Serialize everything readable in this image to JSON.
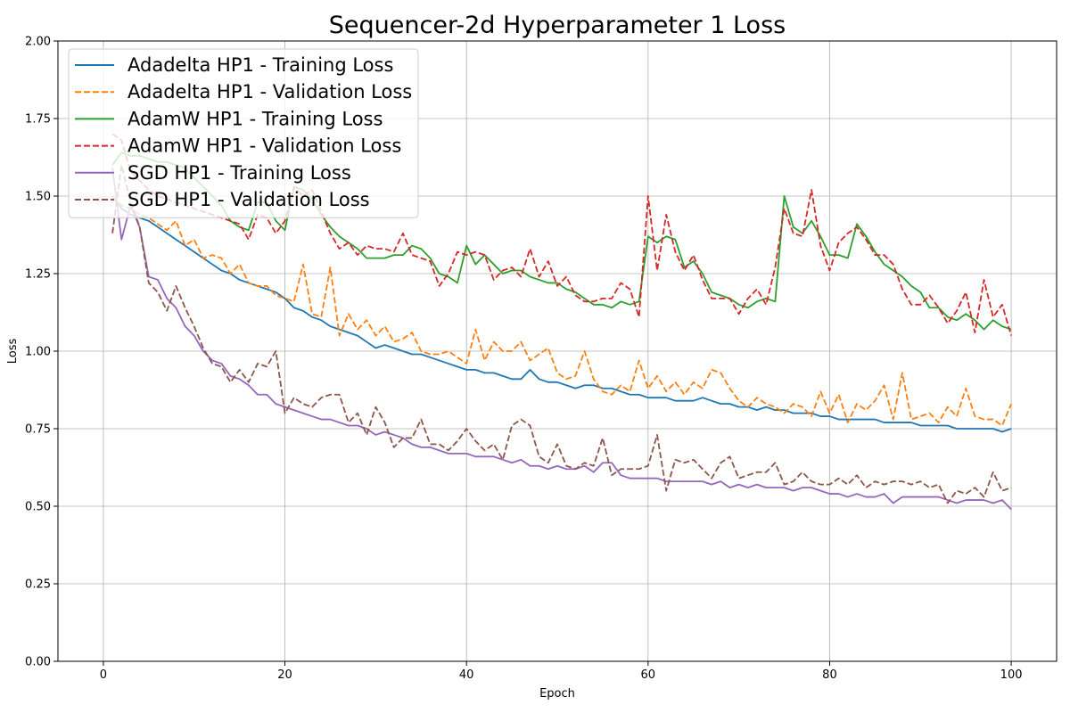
{
  "chart_data": {
    "type": "line",
    "title": "Sequencer-2d Hyperparameter 1 Loss",
    "xlabel": "Epoch",
    "ylabel": "Loss",
    "xlim": [
      -5,
      105
    ],
    "ylim": [
      0,
      2.0
    ],
    "xticks": [
      0,
      20,
      40,
      60,
      80,
      100
    ],
    "yticks": [
      0.0,
      0.25,
      0.5,
      0.75,
      1.0,
      1.25,
      1.5,
      1.75,
      2.0
    ],
    "xtick_labels": [
      "0",
      "20",
      "40",
      "60",
      "80",
      "100"
    ],
    "ytick_labels": [
      "0.00",
      "0.25",
      "0.50",
      "0.75",
      "1.00",
      "1.25",
      "1.50",
      "1.75",
      "2.00"
    ],
    "grid": true,
    "legend_position": "top-left",
    "x_start": 1,
    "series": [
      {
        "name": "Adadelta HP1 - Training Loss",
        "color": "#1f77b4",
        "dash": "solid",
        "values": [
          1.5,
          1.46,
          1.44,
          1.43,
          1.42,
          1.4,
          1.38,
          1.36,
          1.34,
          1.32,
          1.3,
          1.28,
          1.26,
          1.25,
          1.23,
          1.22,
          1.21,
          1.2,
          1.19,
          1.17,
          1.14,
          1.13,
          1.11,
          1.1,
          1.08,
          1.07,
          1.06,
          1.05,
          1.03,
          1.01,
          1.02,
          1.01,
          1.0,
          0.99,
          0.99,
          0.98,
          0.97,
          0.96,
          0.95,
          0.94,
          0.94,
          0.93,
          0.93,
          0.92,
          0.91,
          0.91,
          0.94,
          0.91,
          0.9,
          0.9,
          0.89,
          0.88,
          0.89,
          0.89,
          0.88,
          0.88,
          0.87,
          0.86,
          0.86,
          0.85,
          0.85,
          0.85,
          0.84,
          0.84,
          0.84,
          0.85,
          0.84,
          0.83,
          0.83,
          0.82,
          0.82,
          0.81,
          0.82,
          0.81,
          0.81,
          0.8,
          0.8,
          0.8,
          0.79,
          0.79,
          0.78,
          0.78,
          0.78,
          0.78,
          0.78,
          0.77,
          0.77,
          0.77,
          0.77,
          0.76,
          0.76,
          0.76,
          0.76,
          0.75,
          0.75,
          0.75,
          0.75,
          0.75,
          0.74,
          0.75
        ]
      },
      {
        "name": "Adadelta HP1 - Validation Loss",
        "color": "#ff7f0e",
        "dash": "dashed",
        "values": [
          1.5,
          1.47,
          1.46,
          1.44,
          1.43,
          1.41,
          1.39,
          1.42,
          1.34,
          1.36,
          1.3,
          1.31,
          1.3,
          1.25,
          1.28,
          1.22,
          1.21,
          1.21,
          1.18,
          1.17,
          1.16,
          1.28,
          1.12,
          1.11,
          1.27,
          1.05,
          1.12,
          1.07,
          1.1,
          1.05,
          1.08,
          1.03,
          1.04,
          1.06,
          1.0,
          0.99,
          0.99,
          1.0,
          0.98,
          0.96,
          1.07,
          0.97,
          1.03,
          1.0,
          1.0,
          1.03,
          0.97,
          0.99,
          1.01,
          0.93,
          0.91,
          0.92,
          1.0,
          0.91,
          0.87,
          0.86,
          0.89,
          0.87,
          0.97,
          0.88,
          0.92,
          0.87,
          0.9,
          0.86,
          0.9,
          0.88,
          0.94,
          0.93,
          0.88,
          0.84,
          0.82,
          0.85,
          0.83,
          0.82,
          0.8,
          0.83,
          0.82,
          0.79,
          0.87,
          0.8,
          0.86,
          0.77,
          0.83,
          0.81,
          0.84,
          0.89,
          0.78,
          0.93,
          0.78,
          0.79,
          0.8,
          0.77,
          0.82,
          0.79,
          0.88,
          0.79,
          0.78,
          0.78,
          0.76,
          0.83
        ]
      },
      {
        "name": "AdamW HP1 - Training Loss",
        "color": "#2ca02c",
        "dash": "solid",
        "values": [
          1.6,
          1.64,
          1.63,
          1.63,
          1.62,
          1.61,
          1.61,
          1.6,
          1.59,
          1.56,
          1.53,
          1.5,
          1.47,
          1.42,
          1.4,
          1.39,
          1.48,
          1.48,
          1.42,
          1.39,
          1.53,
          1.52,
          1.49,
          1.44,
          1.4,
          1.37,
          1.35,
          1.33,
          1.3,
          1.3,
          1.3,
          1.31,
          1.31,
          1.34,
          1.33,
          1.3,
          1.25,
          1.24,
          1.22,
          1.34,
          1.28,
          1.31,
          1.28,
          1.25,
          1.26,
          1.26,
          1.24,
          1.23,
          1.22,
          1.22,
          1.2,
          1.19,
          1.17,
          1.15,
          1.15,
          1.14,
          1.16,
          1.15,
          1.16,
          1.37,
          1.35,
          1.37,
          1.36,
          1.27,
          1.29,
          1.25,
          1.19,
          1.18,
          1.17,
          1.15,
          1.14,
          1.16,
          1.17,
          1.16,
          1.5,
          1.4,
          1.38,
          1.42,
          1.37,
          1.31,
          1.31,
          1.3,
          1.41,
          1.37,
          1.32,
          1.28,
          1.26,
          1.24,
          1.21,
          1.19,
          1.14,
          1.14,
          1.11,
          1.1,
          1.12,
          1.1,
          1.07,
          1.1,
          1.08,
          1.07
        ]
      },
      {
        "name": "AdamW HP1 - Validation Loss",
        "color": "#d62728",
        "dash": "dashed",
        "values": [
          1.7,
          1.68,
          1.58,
          1.55,
          1.52,
          1.5,
          1.49,
          1.48,
          1.47,
          1.46,
          1.45,
          1.44,
          1.43,
          1.42,
          1.41,
          1.36,
          1.44,
          1.43,
          1.38,
          1.42,
          1.53,
          1.5,
          1.52,
          1.45,
          1.38,
          1.33,
          1.35,
          1.31,
          1.34,
          1.33,
          1.33,
          1.32,
          1.38,
          1.31,
          1.3,
          1.29,
          1.21,
          1.25,
          1.32,
          1.31,
          1.32,
          1.31,
          1.23,
          1.26,
          1.27,
          1.24,
          1.33,
          1.24,
          1.29,
          1.21,
          1.24,
          1.18,
          1.16,
          1.16,
          1.17,
          1.17,
          1.22,
          1.2,
          1.11,
          1.5,
          1.26,
          1.44,
          1.32,
          1.26,
          1.31,
          1.23,
          1.17,
          1.17,
          1.17,
          1.12,
          1.17,
          1.2,
          1.15,
          1.27,
          1.46,
          1.38,
          1.37,
          1.52,
          1.34,
          1.26,
          1.35,
          1.38,
          1.4,
          1.36,
          1.31,
          1.31,
          1.28,
          1.2,
          1.15,
          1.15,
          1.18,
          1.14,
          1.09,
          1.13,
          1.19,
          1.06,
          1.23,
          1.11,
          1.15,
          1.05
        ]
      },
      {
        "name": "SGD HP1 - Training Loss",
        "color": "#9467bd",
        "dash": "solid",
        "values": [
          1.59,
          1.36,
          1.47,
          1.4,
          1.24,
          1.23,
          1.17,
          1.14,
          1.08,
          1.05,
          1.0,
          0.97,
          0.96,
          0.92,
          0.91,
          0.89,
          0.86,
          0.86,
          0.83,
          0.82,
          0.81,
          0.8,
          0.79,
          0.78,
          0.78,
          0.77,
          0.76,
          0.76,
          0.75,
          0.73,
          0.74,
          0.73,
          0.72,
          0.7,
          0.69,
          0.69,
          0.68,
          0.67,
          0.67,
          0.67,
          0.66,
          0.66,
          0.66,
          0.65,
          0.64,
          0.65,
          0.63,
          0.63,
          0.62,
          0.63,
          0.62,
          0.62,
          0.63,
          0.61,
          0.64,
          0.64,
          0.6,
          0.59,
          0.59,
          0.59,
          0.59,
          0.58,
          0.58,
          0.58,
          0.58,
          0.58,
          0.57,
          0.58,
          0.56,
          0.57,
          0.56,
          0.57,
          0.56,
          0.56,
          0.56,
          0.55,
          0.56,
          0.56,
          0.55,
          0.54,
          0.54,
          0.53,
          0.54,
          0.53,
          0.53,
          0.54,
          0.51,
          0.53,
          0.53,
          0.53,
          0.53,
          0.53,
          0.52,
          0.51,
          0.52,
          0.52,
          0.52,
          0.51,
          0.52,
          0.49
        ]
      },
      {
        "name": "SGD HP1 - Validation Loss",
        "color": "#8c564b",
        "dash": "dashed",
        "values": [
          1.38,
          1.6,
          1.48,
          1.4,
          1.22,
          1.19,
          1.13,
          1.21,
          1.14,
          1.08,
          1.01,
          0.96,
          0.95,
          0.9,
          0.94,
          0.9,
          0.96,
          0.95,
          1.0,
          0.8,
          0.85,
          0.83,
          0.82,
          0.85,
          0.86,
          0.86,
          0.77,
          0.8,
          0.73,
          0.82,
          0.77,
          0.69,
          0.72,
          0.72,
          0.78,
          0.7,
          0.7,
          0.68,
          0.71,
          0.75,
          0.71,
          0.68,
          0.7,
          0.65,
          0.76,
          0.78,
          0.76,
          0.66,
          0.64,
          0.7,
          0.63,
          0.62,
          0.64,
          0.63,
          0.72,
          0.6,
          0.62,
          0.62,
          0.62,
          0.63,
          0.73,
          0.55,
          0.65,
          0.64,
          0.65,
          0.62,
          0.59,
          0.64,
          0.66,
          0.59,
          0.6,
          0.61,
          0.61,
          0.64,
          0.57,
          0.58,
          0.61,
          0.58,
          0.57,
          0.57,
          0.59,
          0.57,
          0.6,
          0.56,
          0.58,
          0.57,
          0.58,
          0.58,
          0.57,
          0.58,
          0.56,
          0.57,
          0.51,
          0.55,
          0.54,
          0.56,
          0.53,
          0.61,
          0.55,
          0.56
        ]
      }
    ]
  }
}
